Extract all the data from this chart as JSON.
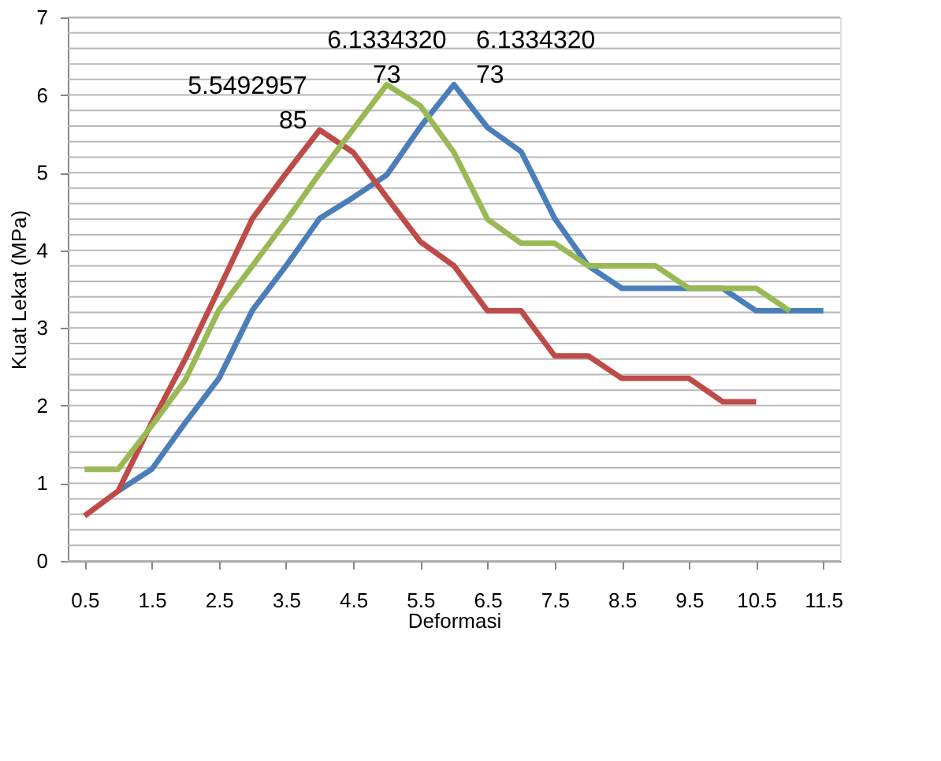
{
  "chart_data": {
    "type": "line",
    "xlabel": "Deformasi",
    "ylabel": "Kuat Lekat (MPa)",
    "xlim": [
      0.25,
      11.75
    ],
    "xticks": [
      0.5,
      1.5,
      2.5,
      3.5,
      4.5,
      5.5,
      6.5,
      7.5,
      8.5,
      9.5,
      10.5,
      11.5
    ],
    "ylim": [
      0,
      7
    ],
    "yticks": [
      0,
      {
        "value": 0.2,
        "label": null
      },
      {
        "value": 0.4,
        "label": null
      },
      {
        "value": 0.6,
        "label": null
      },
      {
        "value": 0.8,
        "label": null
      },
      1,
      {
        "value": 1.2,
        "label": null
      },
      {
        "value": 1.4,
        "label": null
      },
      {
        "value": 1.6,
        "label": null
      },
      {
        "value": 1.8,
        "label": null
      },
      2,
      {
        "value": 2.2,
        "label": null
      },
      {
        "value": 2.4,
        "label": null
      },
      {
        "value": 2.6,
        "label": null
      },
      {
        "value": 2.8,
        "label": null
      },
      3,
      {
        "value": 3.2,
        "label": null
      },
      {
        "value": 3.4,
        "label": null
      },
      {
        "value": 3.6,
        "label": null
      },
      {
        "value": 3.8,
        "label": null
      },
      4,
      {
        "value": 4.2,
        "label": null
      },
      {
        "value": 4.4,
        "label": null
      },
      {
        "value": 4.6,
        "label": null
      },
      {
        "value": 4.8,
        "label": null
      },
      5,
      {
        "value": 5.2,
        "label": null
      },
      {
        "value": 5.4,
        "label": null
      },
      {
        "value": 5.6,
        "label": null
      },
      {
        "value": 5.8,
        "label": null
      },
      6,
      {
        "value": 6.2,
        "label": null
      },
      {
        "value": 6.4,
        "label": null
      },
      {
        "value": 6.6,
        "label": null
      },
      {
        "value": 6.8,
        "label": null
      },
      7
    ],
    "grid": "y",
    "legend": false,
    "marker": "none",
    "line_style": "solid",
    "series": [
      {
        "color": "#4a7ebb",
        "x": [
          1,
          1.5,
          2,
          2.5,
          3,
          3.5,
          4,
          4.5,
          5,
          5.5,
          6,
          6.5,
          7,
          7.5,
          8,
          8.5,
          9,
          9.5,
          10,
          10.5,
          11,
          11.5
        ],
        "values": [
          0.9,
          1.18,
          1.78,
          2.35,
          3.23,
          3.8,
          4.41,
          4.68,
          4.97,
          5.59,
          6.133432073,
          5.58,
          5.27,
          4.41,
          3.8,
          3.51,
          3.51,
          3.51,
          3.51,
          3.22,
          3.22,
          3.22
        ]
      },
      {
        "color": "#be4b48",
        "x": [
          0.5,
          1,
          1.5,
          2,
          2.5,
          3,
          3.5,
          4,
          4.5,
          5,
          5.5,
          6,
          6.5,
          7,
          7.5,
          8,
          8.5,
          9,
          9.5,
          10,
          10.5
        ],
        "values": [
          0.58,
          0.9,
          1.78,
          2.6,
          3.5,
          4.41,
          4.99,
          5.549295785,
          5.26,
          4.68,
          4.11,
          3.8,
          3.22,
          3.22,
          2.64,
          2.64,
          2.35,
          2.35,
          2.35,
          2.05,
          2.05
        ]
      },
      {
        "color": "#98b954",
        "x": [
          0.5,
          1,
          1.5,
          2,
          2.5,
          3,
          3.5,
          4,
          4.5,
          5,
          5.5,
          6,
          6.5,
          7,
          7.5,
          8,
          8.5,
          9,
          9.5,
          10,
          10.5,
          11
        ],
        "values": [
          1.18,
          1.18,
          1.74,
          2.33,
          3.23,
          3.8,
          4.38,
          4.99,
          5.56,
          6.133432073,
          5.86,
          5.26,
          4.4,
          4.09,
          4.09,
          3.8,
          3.8,
          3.8,
          3.51,
          3.51,
          3.51,
          3.22
        ]
      }
    ],
    "annotations": [
      {
        "text": "5.549295785",
        "x": 4,
        "y": 5.549295785
      },
      {
        "text": "6.133432073",
        "x": 5,
        "y": 6.133432073
      },
      {
        "text": "6.133432073",
        "x": 6,
        "y": 6.133432073
      }
    ]
  }
}
